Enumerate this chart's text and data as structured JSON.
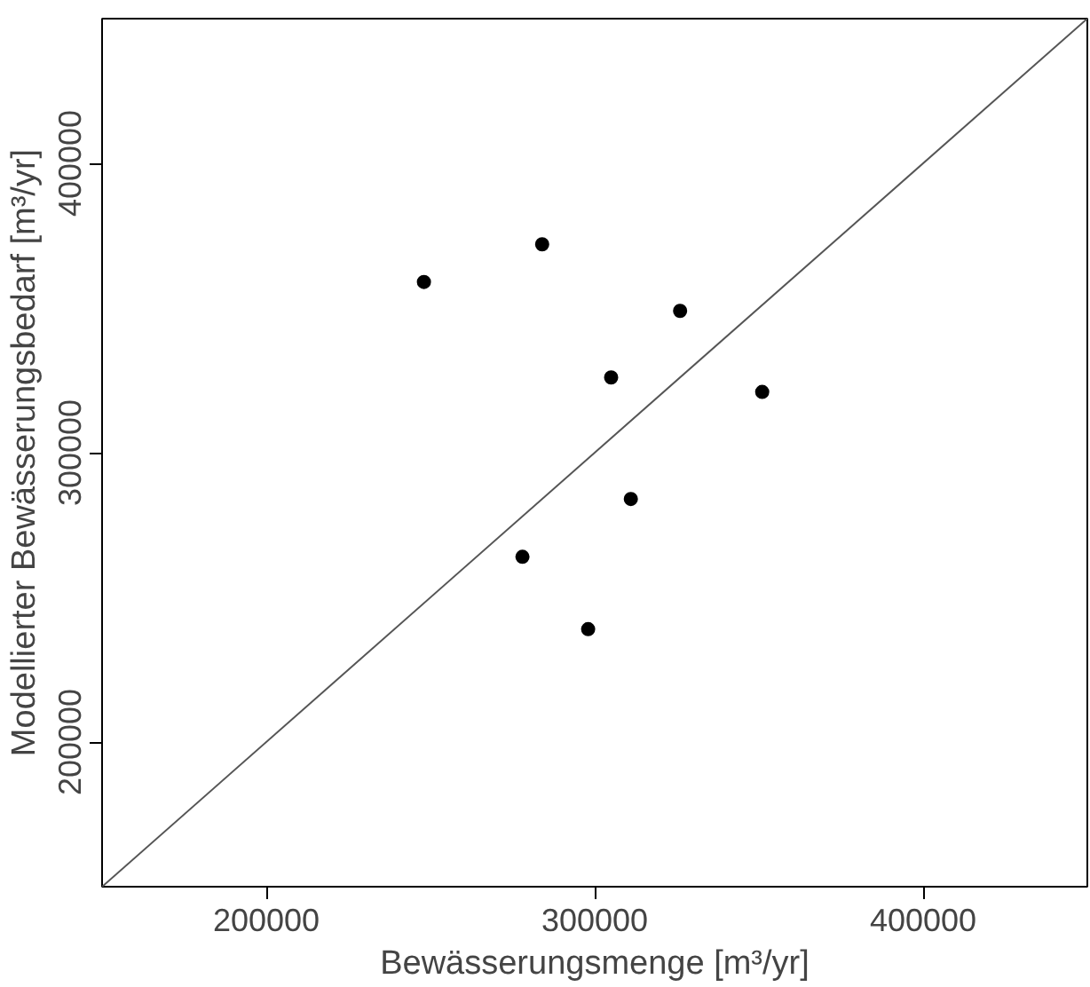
{
  "chart_data": {
    "type": "scatter",
    "xlabel": "Bewässerungsmenge [m³/yr]",
    "ylabel": "Modellierter Bewässerungsbedarf [m³/yr]",
    "x": [
      248000,
      284000,
      326000,
      305000,
      351000,
      311000,
      278000,
      298000
    ],
    "series": [
      {
        "color": "#000000",
        "marker": "circle",
        "values": [
          359000,
          372000,
          349000,
          326000,
          321000,
          284000,
          264000,
          239000
        ]
      },
      {
        "type": "line",
        "color": "#555555",
        "x": [
          150000,
          450000
        ],
        "values": [
          150000,
          450000
        ],
        "line_style": "solid"
      }
    ],
    "xlim": [
      150000,
      450000
    ],
    "ylim": [
      150000,
      450000
    ],
    "xticks": [
      200000,
      300000,
      400000
    ],
    "yticks": [
      200000,
      300000,
      400000
    ],
    "grid": false
  }
}
